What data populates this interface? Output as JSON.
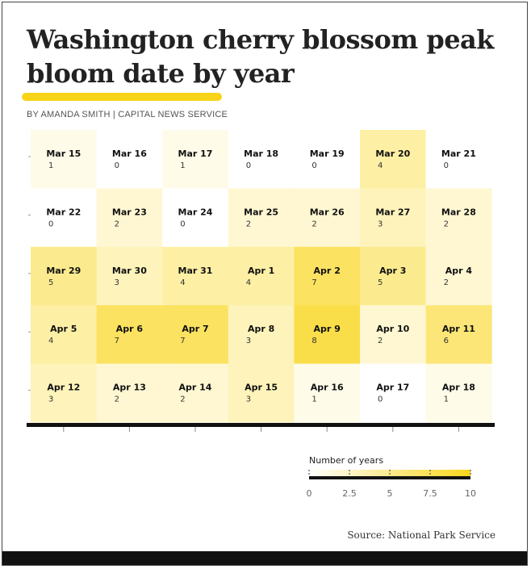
{
  "title": "Washington cherry blossom peak bloom date by year",
  "byline": "BY AMANDA SMITH | CAPITAL NEWS SERVICE",
  "source": "Source: National Park Service",
  "colors": {
    "accent": "#f7d31a",
    "scale_low": "#ffffff",
    "scale_high": "#f9d61c",
    "axis": "#111111"
  },
  "legend": {
    "title": "Number of years",
    "ticks": [
      "0",
      "2.5",
      "5",
      "7.5",
      "10"
    ],
    "min": 0,
    "max": 10
  },
  "chart_data": {
    "type": "heatmap",
    "title": "Washington cherry blossom peak bloom date by year",
    "value_label": "Number of years",
    "columns": 7,
    "scale": [
      0,
      10
    ],
    "cells": [
      {
        "date": "Mar 15",
        "value": 1
      },
      {
        "date": "Mar 16",
        "value": 0
      },
      {
        "date": "Mar 17",
        "value": 1
      },
      {
        "date": "Mar 18",
        "value": 0
      },
      {
        "date": "Mar 19",
        "value": 0
      },
      {
        "date": "Mar 20",
        "value": 4
      },
      {
        "date": "Mar 21",
        "value": 0
      },
      {
        "date": "Mar 22",
        "value": 0
      },
      {
        "date": "Mar 23",
        "value": 2
      },
      {
        "date": "Mar 24",
        "value": 0
      },
      {
        "date": "Mar 25",
        "value": 2
      },
      {
        "date": "Mar 26",
        "value": 2
      },
      {
        "date": "Mar 27",
        "value": 3
      },
      {
        "date": "Mar 28",
        "value": 2
      },
      {
        "date": "Mar 29",
        "value": 5
      },
      {
        "date": "Mar 30",
        "value": 3
      },
      {
        "date": "Mar 31",
        "value": 4
      },
      {
        "date": "Apr 1",
        "value": 4
      },
      {
        "date": "Apr 2",
        "value": 7
      },
      {
        "date": "Apr 3",
        "value": 5
      },
      {
        "date": "Apr 4",
        "value": 2
      },
      {
        "date": "Apr 5",
        "value": 4
      },
      {
        "date": "Apr 6",
        "value": 7
      },
      {
        "date": "Apr 7",
        "value": 7
      },
      {
        "date": "Apr 8",
        "value": 3
      },
      {
        "date": "Apr 9",
        "value": 8
      },
      {
        "date": "Apr 10",
        "value": 2
      },
      {
        "date": "Apr 11",
        "value": 6
      },
      {
        "date": "Apr 12",
        "value": 3
      },
      {
        "date": "Apr 13",
        "value": 2
      },
      {
        "date": "Apr 14",
        "value": 2
      },
      {
        "date": "Apr 15",
        "value": 3
      },
      {
        "date": "Apr 16",
        "value": 1
      },
      {
        "date": "Apr 17",
        "value": 0
      },
      {
        "date": "Apr 18",
        "value": 1
      }
    ]
  }
}
